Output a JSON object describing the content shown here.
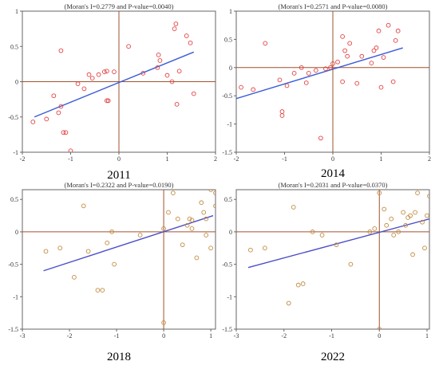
{
  "colors": {
    "frame": "#666666",
    "quadrant_lines": "#a0522d",
    "fit_2011": "#3b5cd6",
    "fit_2014": "#3b5cd6",
    "fit_2018": "#4b4fc8",
    "fit_2022": "#4b4fc8",
    "points_2011": "#e34040",
    "points_2014": "#e34040",
    "points_2018": "#c08a3e",
    "points_2022": "#c08a3e"
  },
  "chart_data": [
    {
      "type": "scatter",
      "panel_label": "2011",
      "title": "(Moran's I=0.2779 and P-value=0.0040)",
      "xlim": [
        -2,
        2
      ],
      "ylim": [
        -1,
        1
      ],
      "xticks": [
        "-2",
        "-1",
        "0",
        "1",
        "2"
      ],
      "yticks": [
        "1",
        "0.5",
        "0",
        "-0.5",
        "-1"
      ],
      "fit_line": {
        "x": [
          -1.75,
          1.55
        ],
        "y": [
          -0.5,
          0.42
        ]
      },
      "points": [
        [
          -1.78,
          -0.57
        ],
        [
          -1.5,
          -0.53
        ],
        [
          -1.35,
          -0.2
        ],
        [
          -1.25,
          -0.44
        ],
        [
          -1.2,
          -0.35
        ],
        [
          -1.15,
          -0.72
        ],
        [
          -1.1,
          -0.72
        ],
        [
          -1.0,
          -0.98
        ],
        [
          -1.2,
          0.44
        ],
        [
          -0.85,
          -0.03
        ],
        [
          -0.72,
          -0.1
        ],
        [
          -0.62,
          0.1
        ],
        [
          -0.55,
          0.05
        ],
        [
          -0.42,
          0.1
        ],
        [
          -0.3,
          0.14
        ],
        [
          -0.25,
          0.15
        ],
        [
          -0.25,
          -0.27
        ],
        [
          -0.22,
          -0.27
        ],
        [
          -0.1,
          0.14
        ],
        [
          0.2,
          0.5
        ],
        [
          0.5,
          0.12
        ],
        [
          0.8,
          0.2
        ],
        [
          0.82,
          0.38
        ],
        [
          0.85,
          0.3
        ],
        [
          1.0,
          0.09
        ],
        [
          1.1,
          0.0
        ],
        [
          1.15,
          0.75
        ],
        [
          1.18,
          0.82
        ],
        [
          1.2,
          -0.32
        ],
        [
          1.25,
          0.15
        ],
        [
          1.4,
          0.65
        ],
        [
          1.48,
          0.55
        ],
        [
          1.55,
          -0.17
        ]
      ]
    },
    {
      "type": "scatter",
      "panel_label": "2014",
      "title": "(Moran's I=0.2571 and P-value=0.0080)",
      "xlim": [
        -2,
        2
      ],
      "ylim": [
        -1.5,
        1
      ],
      "xticks": [
        "-2",
        "-1",
        "0",
        "1",
        "2"
      ],
      "yticks": [
        "1",
        "0.5",
        "0",
        "-0.5",
        "-1",
        "-1.5"
      ],
      "fit_line": {
        "x": [
          -2.0,
          1.45
        ],
        "y": [
          -0.55,
          0.35
        ]
      },
      "points": [
        [
          -1.9,
          -0.35
        ],
        [
          -1.65,
          -0.39
        ],
        [
          -1.4,
          0.43
        ],
        [
          -1.1,
          -0.22
        ],
        [
          -1.05,
          -0.78
        ],
        [
          -1.05,
          -0.85
        ],
        [
          -0.95,
          -0.32
        ],
        [
          -0.8,
          -0.1
        ],
        [
          -0.65,
          0.0
        ],
        [
          -0.55,
          -0.27
        ],
        [
          -0.5,
          -0.1
        ],
        [
          -0.35,
          -0.05
        ],
        [
          -0.25,
          -1.25
        ],
        [
          -0.15,
          -0.02
        ],
        [
          -0.05,
          0.0
        ],
        [
          0.0,
          0.07
        ],
        [
          0.1,
          0.1
        ],
        [
          0.2,
          0.55
        ],
        [
          0.25,
          0.3
        ],
        [
          0.3,
          0.2
        ],
        [
          0.35,
          0.43
        ],
        [
          0.2,
          -0.25
        ],
        [
          0.5,
          -0.28
        ],
        [
          0.6,
          0.2
        ],
        [
          0.8,
          0.08
        ],
        [
          0.85,
          0.3
        ],
        [
          0.9,
          0.35
        ],
        [
          0.95,
          0.65
        ],
        [
          1.05,
          0.18
        ],
        [
          1.0,
          -0.35
        ],
        [
          1.15,
          0.75
        ],
        [
          1.3,
          0.48
        ],
        [
          1.35,
          0.65
        ],
        [
          1.25,
          -0.25
        ]
      ]
    },
    {
      "type": "scatter",
      "panel_label": "2018",
      "title": "(Moran's I=0.2322 and P-value=0.0190)",
      "xlim": [
        -3,
        1.1
      ],
      "ylim": [
        -1.5,
        0.65
      ],
      "xticks": [
        "-3",
        "-2",
        "-1",
        "0",
        "1"
      ],
      "yticks": [
        "0.5",
        "0",
        "-0.5",
        "-1",
        "-1.5"
      ],
      "fit_line": {
        "x": [
          -2.55,
          1.05
        ],
        "y": [
          -0.6,
          0.25
        ]
      },
      "points": [
        [
          -2.5,
          -0.3
        ],
        [
          -2.2,
          -0.25
        ],
        [
          -1.9,
          -0.7
        ],
        [
          -1.6,
          -0.3
        ],
        [
          -1.4,
          -0.9
        ],
        [
          -1.3,
          -0.9
        ],
        [
          -1.2,
          -0.17
        ],
        [
          -1.1,
          0.0
        ],
        [
          -1.05,
          -0.5
        ],
        [
          -0.5,
          -0.05
        ],
        [
          0.0,
          -1.4
        ],
        [
          0.0,
          0.05
        ],
        [
          0.1,
          0.3
        ],
        [
          0.3,
          0.2
        ],
        [
          0.4,
          -0.2
        ],
        [
          0.5,
          0.1
        ],
        [
          0.55,
          0.2
        ],
        [
          0.6,
          0.18
        ],
        [
          0.7,
          -0.4
        ],
        [
          0.8,
          0.45
        ],
        [
          0.85,
          0.3
        ],
        [
          0.9,
          0.2
        ],
        [
          1.0,
          0.65
        ],
        [
          1.0,
          -0.25
        ],
        [
          1.1,
          0.4
        ],
        [
          1.1,
          0.6
        ],
        [
          -1.7,
          0.4
        ],
        [
          0.2,
          0.6
        ],
        [
          0.6,
          0.05
        ],
        [
          0.9,
          -0.05
        ]
      ]
    },
    {
      "type": "scatter",
      "panel_label": "2022",
      "title": "(Moran's I=0.2031 and P-value=0.0370)",
      "xlim": [
        -3,
        1.05
      ],
      "ylim": [
        -1.5,
        0.65
      ],
      "xticks": [
        "-3",
        "-2",
        "-1",
        "0",
        "1"
      ],
      "yticks": [
        "0.5",
        "0",
        "-0.5",
        "-1",
        "-1.5"
      ],
      "fit_line": {
        "x": [
          -2.75,
          1.05
        ],
        "y": [
          -0.55,
          0.2
        ]
      },
      "points": [
        [
          -2.7,
          -0.28
        ],
        [
          -2.4,
          -0.25
        ],
        [
          -1.9,
          -1.1
        ],
        [
          -1.8,
          0.38
        ],
        [
          -1.7,
          -0.82
        ],
        [
          -1.6,
          -0.8
        ],
        [
          -1.4,
          0.0
        ],
        [
          -1.2,
          -0.05
        ],
        [
          -0.9,
          -0.2
        ],
        [
          -0.6,
          -0.5
        ],
        [
          -0.2,
          0.0
        ],
        [
          0.0,
          -1.5
        ],
        [
          0.0,
          0.6
        ],
        [
          0.1,
          0.35
        ],
        [
          0.15,
          0.1
        ],
        [
          0.25,
          0.2
        ],
        [
          0.3,
          -0.05
        ],
        [
          0.4,
          0.0
        ],
        [
          0.5,
          0.3
        ],
        [
          0.55,
          0.1
        ],
        [
          0.6,
          0.22
        ],
        [
          0.65,
          0.25
        ],
        [
          0.7,
          -0.35
        ],
        [
          0.75,
          0.3
        ],
        [
          0.8,
          0.6
        ],
        [
          0.9,
          0.15
        ],
        [
          0.95,
          -0.25
        ],
        [
          1.0,
          0.25
        ],
        [
          1.05,
          0.55
        ],
        [
          -0.1,
          0.05
        ]
      ]
    }
  ]
}
